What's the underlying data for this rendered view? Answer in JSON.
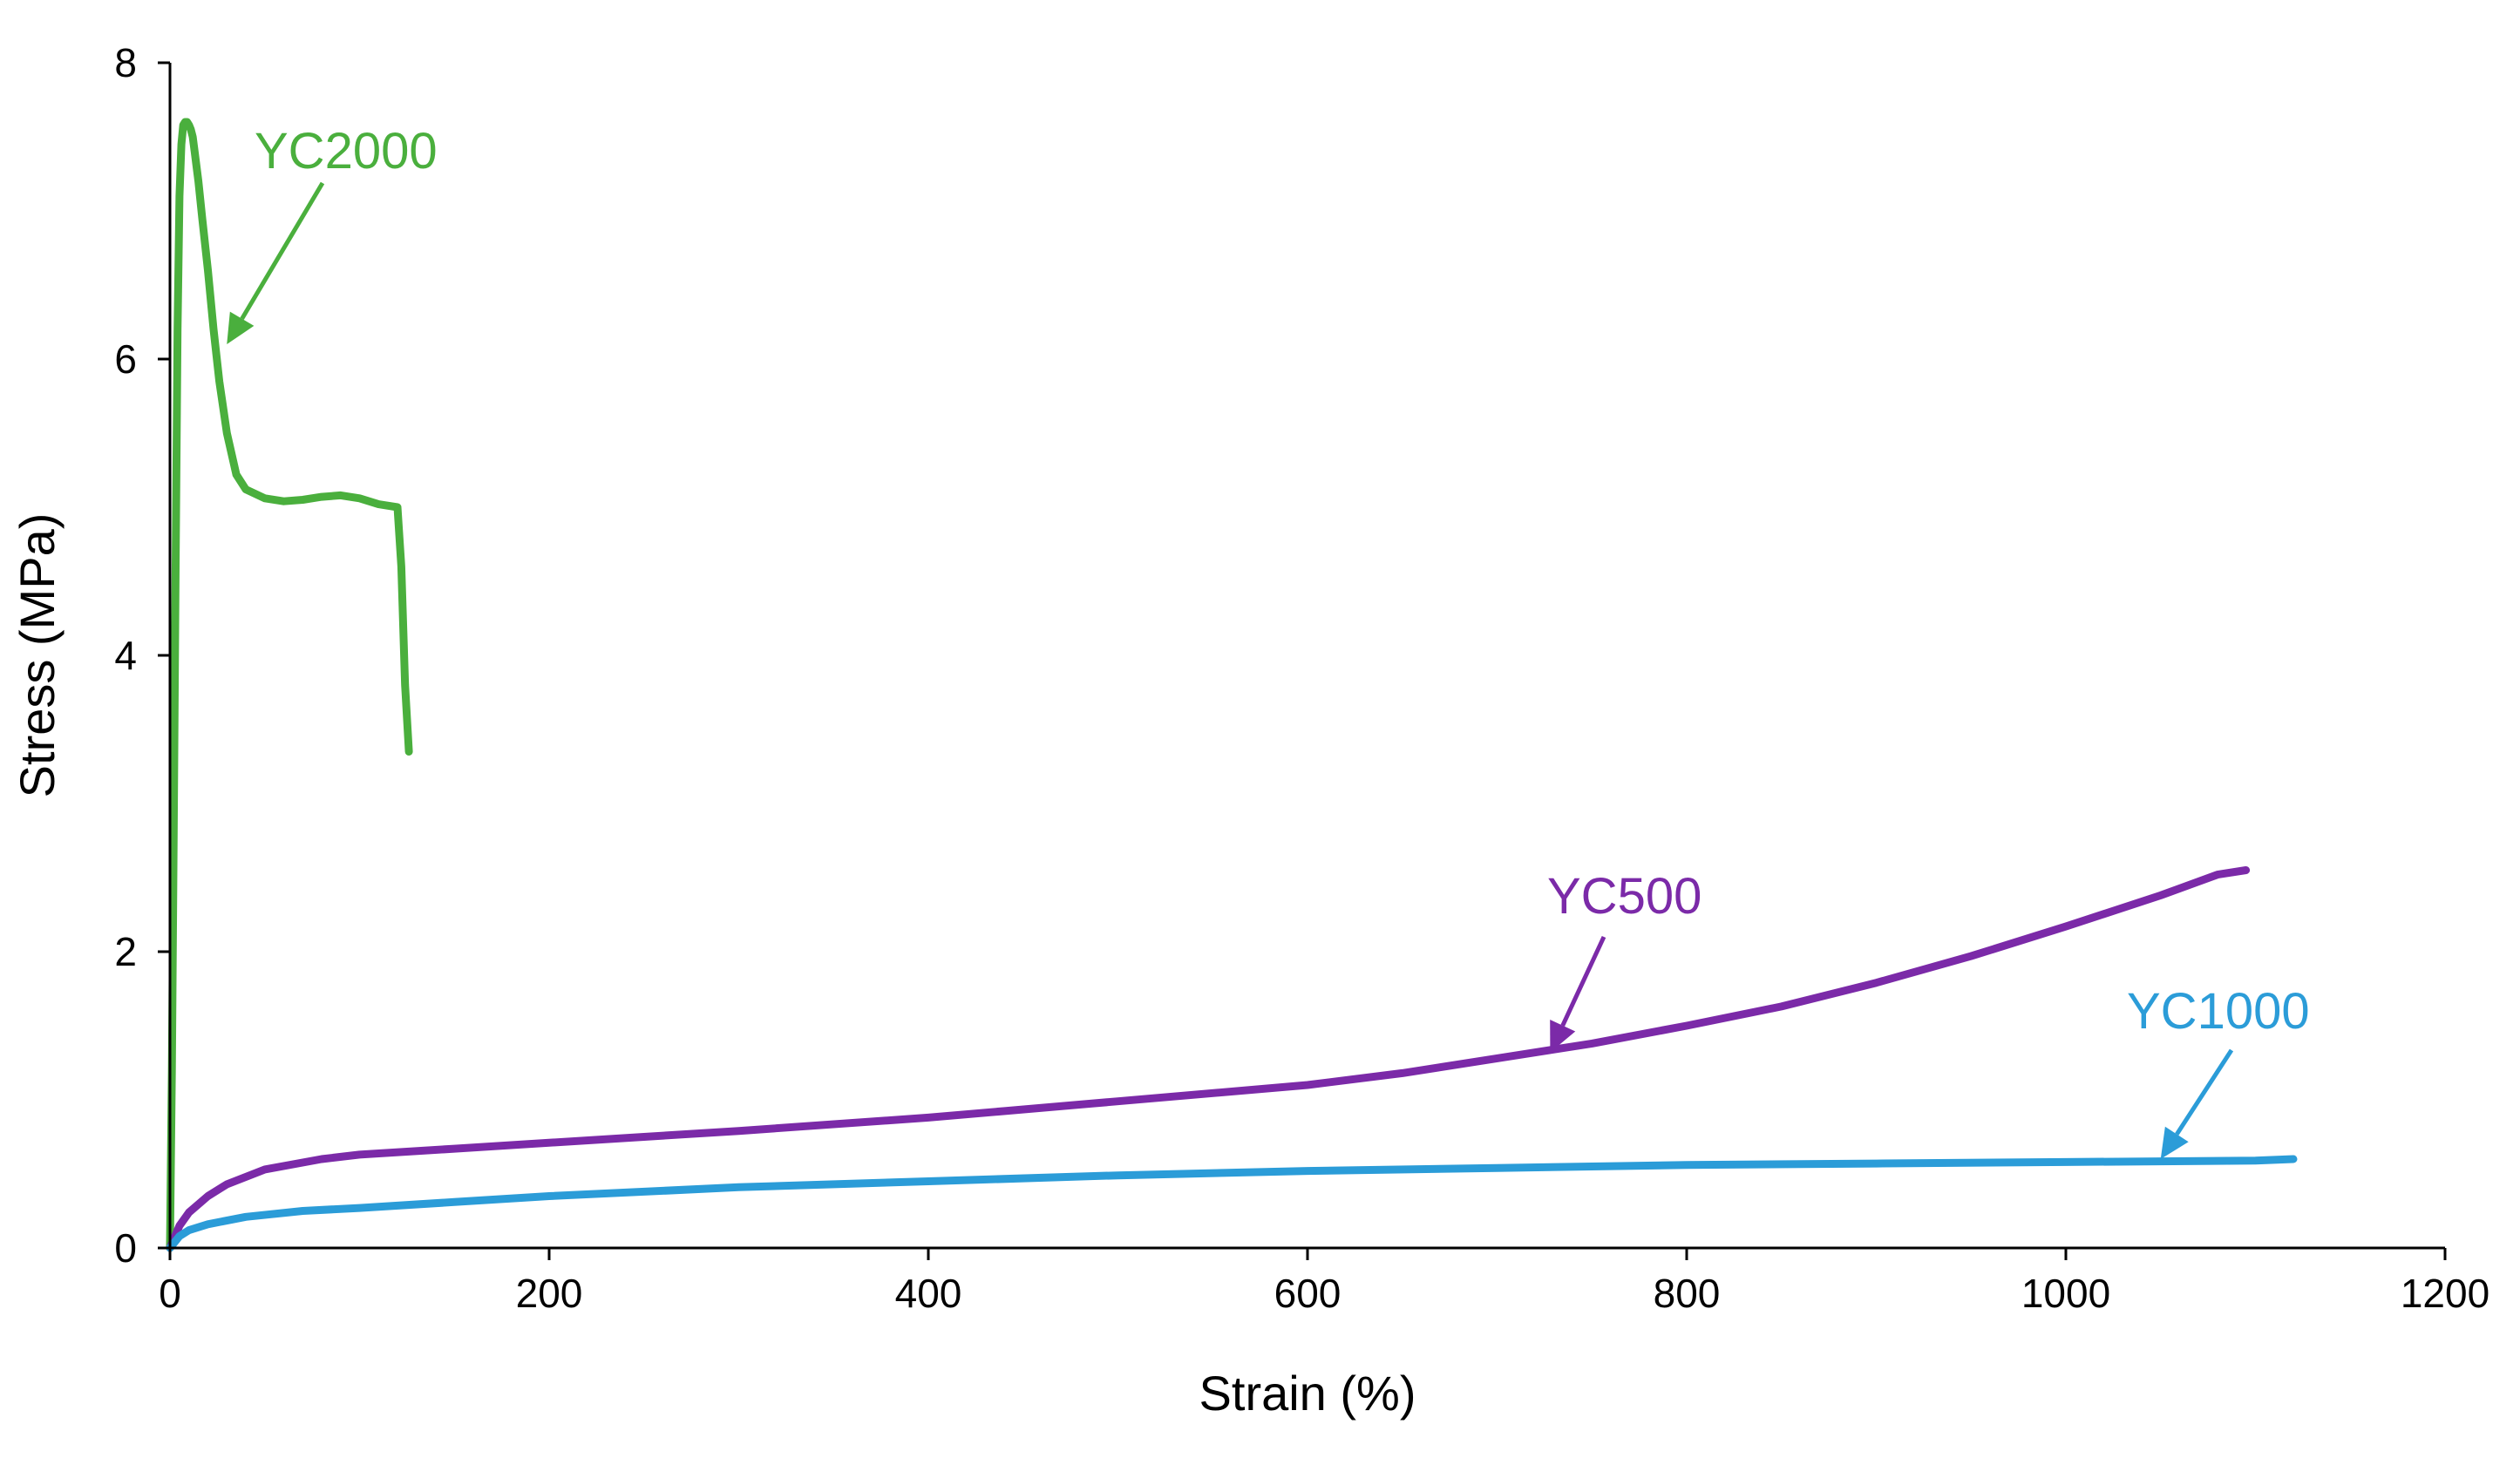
{
  "chart_data": {
    "type": "line",
    "title": "",
    "xlabel": "Strain (%)",
    "ylabel": "Stress (MPa)",
    "xlim": [
      0,
      1200
    ],
    "ylim": [
      0,
      8
    ],
    "xticks": [
      0,
      200,
      400,
      600,
      800,
      1000,
      1200
    ],
    "yticks": [
      0,
      2,
      4,
      6,
      8
    ],
    "grid": false,
    "legend": "none (direct labels with arrows)",
    "series": [
      {
        "name": "YC2000",
        "color": "#4aaf3d",
        "x": [
          0,
          1,
          2,
          3,
          4,
          5,
          6,
          7,
          8,
          9,
          10,
          11,
          12,
          13,
          15,
          17,
          20,
          23,
          26,
          30,
          35,
          40,
          50,
          60,
          70,
          80,
          90,
          100,
          110,
          120,
          122,
          124,
          126
        ],
        "y": [
          0,
          1.2,
          2.8,
          4.6,
          6.2,
          7.1,
          7.45,
          7.58,
          7.6,
          7.6,
          7.58,
          7.55,
          7.5,
          7.4,
          7.2,
          6.95,
          6.6,
          6.2,
          5.85,
          5.5,
          5.22,
          5.12,
          5.06,
          5.04,
          5.05,
          5.07,
          5.08,
          5.06,
          5.02,
          5.0,
          4.6,
          3.8,
          3.35
        ]
      },
      {
        "name": "YC500",
        "color": "#7b2aa8",
        "x": [
          0,
          5,
          10,
          20,
          30,
          50,
          80,
          100,
          150,
          200,
          250,
          300,
          400,
          500,
          600,
          650,
          700,
          750,
          800,
          850,
          900,
          950,
          1000,
          1050,
          1080,
          1095
        ],
        "y": [
          0,
          0.15,
          0.24,
          0.35,
          0.43,
          0.53,
          0.6,
          0.63,
          0.67,
          0.71,
          0.75,
          0.79,
          0.88,
          0.99,
          1.1,
          1.18,
          1.28,
          1.38,
          1.5,
          1.63,
          1.79,
          1.97,
          2.17,
          2.38,
          2.52,
          2.55
        ]
      },
      {
        "name": "YC1000",
        "color": "#2b9cd8",
        "x": [
          0,
          5,
          10,
          20,
          40,
          70,
          100,
          150,
          200,
          300,
          400,
          500,
          600,
          700,
          800,
          900,
          1000,
          1100,
          1120
        ],
        "y": [
          0,
          0.08,
          0.12,
          0.16,
          0.21,
          0.25,
          0.27,
          0.31,
          0.35,
          0.41,
          0.45,
          0.49,
          0.52,
          0.54,
          0.56,
          0.57,
          0.58,
          0.59,
          0.6
        ]
      }
    ],
    "annotations": [
      {
        "text": "YC2000",
        "series": "YC2000",
        "points_to": [
          30,
          6.1
        ]
      },
      {
        "text": "YC500",
        "series": "YC500",
        "points_to": [
          728,
          1.32
        ]
      },
      {
        "text": "YC1000",
        "series": "YC1000",
        "points_to": [
          1050,
          0.6
        ]
      }
    ]
  }
}
